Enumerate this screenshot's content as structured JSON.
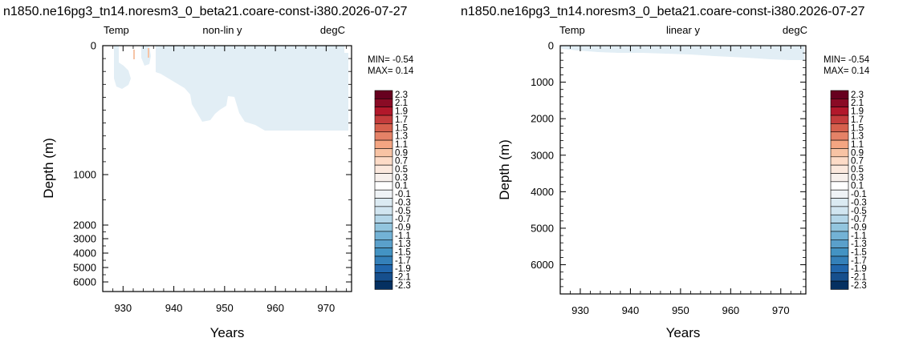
{
  "chart_data": [
    {
      "type": "heatmap",
      "title": "n1850.ne16pg3_tn14.noresm3_0_beta21.coare-const-i380.2026-07-27",
      "left_label": "Temp",
      "center_label": "non-lin y",
      "right_label": "degC",
      "xlabel": "Years",
      "ylabel": "Depth (m)",
      "xlim": [
        926,
        975
      ],
      "xticks": [
        "930",
        "940",
        "950",
        "960",
        "970"
      ],
      "y_scale": "nonlinear",
      "yticks": [
        "0",
        "1000",
        "2000",
        "3000",
        "4000",
        "5000",
        "6000"
      ],
      "ylim": [
        0,
        6500
      ],
      "min_text": "MIN= -0.54",
      "max_text": "MAX=  0.14",
      "field": "temperature anomaly, values within -0.1..-0.3 in upper ~600 m, near-zero elsewhere"
    },
    {
      "type": "heatmap",
      "title": "n1850.ne16pg3_tn14.noresm3_0_beta21.coare-const-i380.2026-07-27",
      "left_label": "Temp",
      "center_label": "linear y",
      "right_label": "degC",
      "xlabel": "Years",
      "ylabel": "Depth (m)",
      "xlim": [
        926,
        975
      ],
      "xticks": [
        "930",
        "940",
        "950",
        "960",
        "970"
      ],
      "y_scale": "linear",
      "yticks": [
        "0",
        "1000",
        "2000",
        "3000",
        "4000",
        "5000",
        "6000"
      ],
      "ylim": [
        0,
        6800
      ],
      "min_text": "MIN= -0.54",
      "max_text": "MAX=  0.14",
      "field": "temperature anomaly, values within -0.1..-0.3 in upper ~300 m, near-zero elsewhere"
    }
  ],
  "colorbar": {
    "labels": [
      "2.3",
      "2.1",
      "1.9",
      "1.7",
      "1.5",
      "1.3",
      "1.1",
      "0.9",
      "0.7",
      "0.5",
      "0.3",
      "0.1",
      "-0.1",
      "-0.3",
      "-0.5",
      "-0.7",
      "-0.9",
      "-1.1",
      "-1.3",
      "-1.5",
      "-1.7",
      "-1.9",
      "-2.1",
      "-2.3"
    ],
    "colors": [
      "#67001f",
      "#8a0b25",
      "#b2182b",
      "#c43c3c",
      "#d6604d",
      "#e58267",
      "#f4a582",
      "#f8c3a4",
      "#fddbc7",
      "#fbe8dd",
      "#f7f0ec",
      "#ffffff",
      "#eff3f6",
      "#dbeaf2",
      "#d1e5f0",
      "#b4d6e8",
      "#92c5de",
      "#73b2d5",
      "#5aa0cb",
      "#4393c3",
      "#3480b9",
      "#2166ac",
      "#164f8d",
      "#053061"
    ]
  },
  "colors": {
    "anomaly_fill": "#e2eef5",
    "warm_streak": "#f6c4a6"
  }
}
